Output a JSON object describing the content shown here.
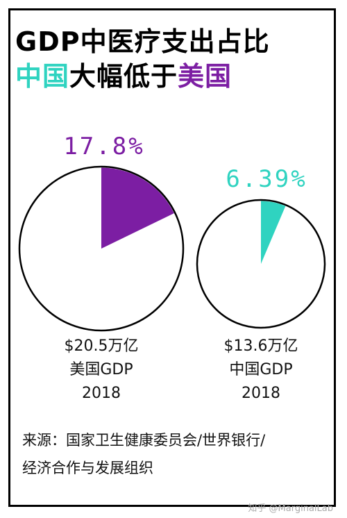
{
  "title_line1": "GDP中医疗支出占比",
  "title_line2": {
    "part1": "中国",
    "part2": "大幅低于",
    "part3": "美国"
  },
  "colors": {
    "us": "#7c1ea3",
    "china": "#2fd3c0",
    "frame": "#000000"
  },
  "chart_data": [
    {
      "type": "pie",
      "country": "美国",
      "share_percent": 17.8,
      "share_label": "17.8%",
      "gdp_label": "$20.5万亿",
      "gdp_name": "美国GDP",
      "year": "2018"
    },
    {
      "type": "pie",
      "country": "中国",
      "share_percent": 6.39,
      "share_label": "6.39%",
      "gdp_label": "$13.6万亿",
      "gdp_name": "中国GDP",
      "year": "2018"
    }
  ],
  "source_line1": "来源：国家卫生健康委员会/世界银行/",
  "source_line2": "经济合作与发展组织",
  "watermark": "知乎 @MarginalLab"
}
